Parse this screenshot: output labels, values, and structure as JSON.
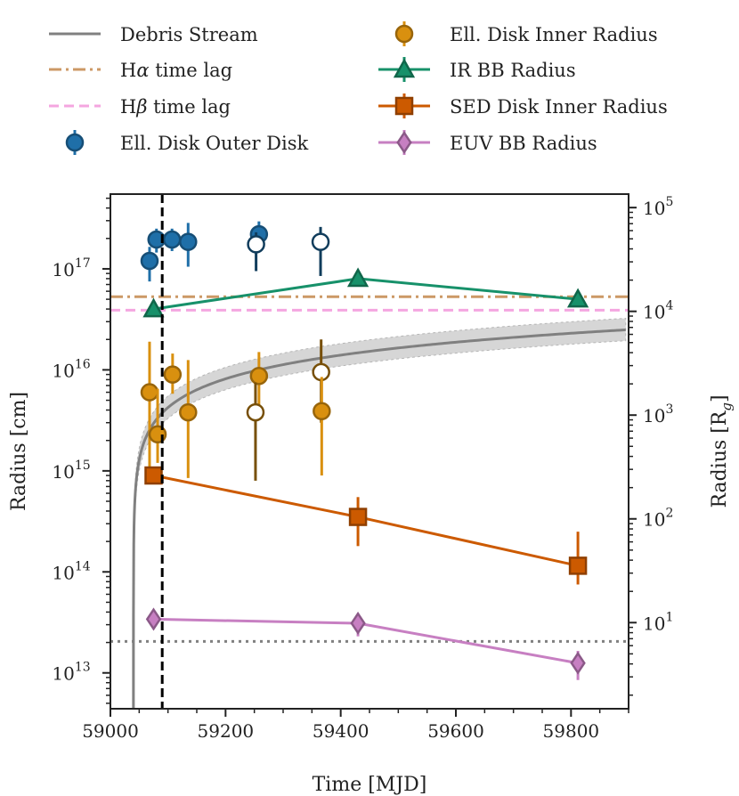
{
  "chart_data": {
    "type": "scatter",
    "xlabel": "Time [MJD]",
    "ylabel": "Radius [cm]",
    "ylabel_right": "Radius [R",
    "ylabel_right_sub": "g",
    "ylabel_right_close": "]",
    "xlim": [
      59000,
      59900
    ],
    "ylim_log10": [
      12.645,
      17.74
    ],
    "ylim_right_log10": [
      0.17,
      5.13
    ],
    "grid": false,
    "legend_position": "top",
    "x_ticks": [
      {
        "value": 59000,
        "label": "59000"
      },
      {
        "value": 59200,
        "label": "59200"
      },
      {
        "value": 59400,
        "label": "59400"
      },
      {
        "value": 59600,
        "label": "59600"
      },
      {
        "value": 59800,
        "label": "59800"
      }
    ],
    "y_ticks_left": [
      {
        "exp": 13,
        "base": "10",
        "power": "13"
      },
      {
        "exp": 14,
        "base": "10",
        "power": "14"
      },
      {
        "exp": 15,
        "base": "10",
        "power": "15"
      },
      {
        "exp": 16,
        "base": "10",
        "power": "16"
      },
      {
        "exp": 17,
        "base": "10",
        "power": "17"
      }
    ],
    "y_ticks_right": [
      {
        "exp": 1,
        "base": "10",
        "power": "1"
      },
      {
        "exp": 2,
        "base": "10",
        "power": "2"
      },
      {
        "exp": 3,
        "base": "10",
        "power": "3"
      },
      {
        "exp": 4,
        "base": "10",
        "power": "4"
      },
      {
        "exp": 5,
        "base": "10",
        "power": "5"
      }
    ],
    "vertical_line_mjd": 59090,
    "dotted_horizontal_cm": 20500000000000.0,
    "legend": [
      {
        "key": "debris",
        "label": "Debris Stream",
        "color": "#808080",
        "style": "solid"
      },
      {
        "key": "halpha",
        "label_pre": "H",
        "label_greek": "α",
        "label_post": " time lag",
        "color": "#cc9966",
        "style": "dashdot"
      },
      {
        "key": "hbeta",
        "label_pre": "H",
        "label_greek": "β",
        "label_post": " time lag",
        "color": "#f4a6e0",
        "style": "dashed"
      },
      {
        "key": "outer",
        "label": "Ell. Disk Outer Disk",
        "color": "#1f6fa8",
        "marker": "circle"
      },
      {
        "key": "inner",
        "label": "Ell. Disk Inner Radius",
        "color": "#d9900f",
        "marker": "circle"
      },
      {
        "key": "ir",
        "label": "IR BB Radius",
        "color": "#17916a",
        "marker": "triangle"
      },
      {
        "key": "sed",
        "label": "SED Disk Inner Radius",
        "color": "#cc5a00",
        "marker": "square"
      },
      {
        "key": "euv",
        "label": "EUV BB Radius",
        "color": "#c77fc2",
        "marker": "diamond"
      }
    ],
    "halpha_cm": 5.3e+16,
    "hbeta_cm": 3.9e+16,
    "debris_stream": {
      "t0": 59040,
      "r_at_59900": 2.5e+16,
      "band_upper_factor": 1.3,
      "band_lower_factor": 0.78
    },
    "series": [
      {
        "name": "Ell. Disk Outer Disk",
        "key": "outer",
        "points": [
          {
            "x": 59068,
            "y": 1.2e+17,
            "ylo": 7.5e+16,
            "yhi": 1.65e+17,
            "open": false
          },
          {
            "x": 59080,
            "y": 1.95e+17,
            "ylo": 1.45e+17,
            "yhi": 2.5e+17,
            "open": false
          },
          {
            "x": 59107,
            "y": 1.95e+17,
            "ylo": 1.5e+17,
            "yhi": 2.5e+17,
            "open": false
          },
          {
            "x": 59135,
            "y": 1.85e+17,
            "ylo": 1.05e+17,
            "yhi": 2.85e+17,
            "open": false
          },
          {
            "x": 59258,
            "y": 2.2e+17,
            "ylo": 1.6e+17,
            "yhi": 2.95e+17,
            "open": false
          },
          {
            "x": 59253,
            "y": 1.75e+17,
            "ylo": 9.5e+16,
            "yhi": 2.3e+17,
            "open": true
          },
          {
            "x": 59365,
            "y": 1.85e+17,
            "ylo": 8.5e+16,
            "yhi": 2.6e+17,
            "open": true
          }
        ]
      },
      {
        "name": "Ell. Disk Inner Radius",
        "key": "inner",
        "points": [
          {
            "x": 59068,
            "y": 6000000000000000.0,
            "ylo": 1100000000000000.0,
            "yhi": 1.9e+16,
            "open": false
          },
          {
            "x": 59082,
            "y": 2300000000000000.0,
            "ylo": 1200000000000000.0,
            "yhi": 6500000000000000.0,
            "open": false
          },
          {
            "x": 59108,
            "y": 9000000000000000.0,
            "ylo": 5800000000000000.0,
            "yhi": 1.45e+16,
            "open": false
          },
          {
            "x": 59135,
            "y": 3800000000000000.0,
            "ylo": 850000000000000.0,
            "yhi": 1.25e+16,
            "open": false
          },
          {
            "x": 59258,
            "y": 8700000000000000.0,
            "ylo": 3200000000000000.0,
            "yhi": 1.5e+16,
            "open": false
          },
          {
            "x": 59252,
            "y": 3800000000000000.0,
            "ylo": 800000000000000.0,
            "yhi": 7500000000000000.0,
            "open": true
          },
          {
            "x": 59366,
            "y": 9500000000000000.0,
            "ylo": 3000000000000000.0,
            "yhi": 2e+16,
            "open": true
          },
          {
            "x": 59367,
            "y": 3900000000000000.0,
            "ylo": 900000000000000.0,
            "yhi": 8500000000000000.0,
            "open": false
          }
        ]
      },
      {
        "name": "IR BB Radius",
        "key": "ir",
        "points": [
          {
            "x": 59075,
            "y": 4e+16
          },
          {
            "x": 59430,
            "y": 8e+16
          },
          {
            "x": 59812,
            "y": 5e+16
          }
        ]
      },
      {
        "name": "SED Disk Inner Radius",
        "key": "sed",
        "points": [
          {
            "x": 59075,
            "y": 900000000000000.0,
            "ylo": 800000000000000.0,
            "yhi": 1000000000000000.0
          },
          {
            "x": 59430,
            "y": 350000000000000.0,
            "ylo": 180000000000000.0,
            "yhi": 550000000000000.0
          },
          {
            "x": 59812,
            "y": 115000000000000.0,
            "ylo": 75000000000000.0,
            "yhi": 250000000000000.0
          }
        ]
      },
      {
        "name": "EUV BB Radius",
        "key": "euv",
        "points": [
          {
            "x": 59075,
            "y": 34000000000000.0,
            "ylo": 30000000000000.0,
            "yhi": 38000000000000.0
          },
          {
            "x": 59430,
            "y": 31000000000000.0,
            "ylo": 23000000000000.0,
            "yhi": 37000000000000.0
          },
          {
            "x": 59812,
            "y": 12500000000000.0,
            "ylo": 8500000000000.0,
            "yhi": 16500000000000.0
          }
        ]
      }
    ]
  }
}
